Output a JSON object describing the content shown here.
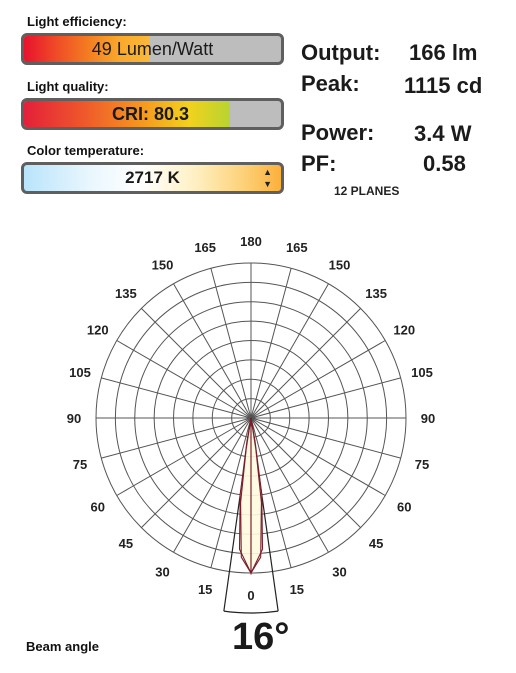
{
  "efficiency": {
    "label": "Light efficiency:",
    "value_text": "49 Lumen/Watt",
    "fill_fraction": 0.49
  },
  "quality": {
    "label": "Light quality:",
    "value_text": "CRI:  80.3",
    "fill_fraction": 0.803
  },
  "color_temp": {
    "label": "Color temperature:",
    "value_text": "2717 K",
    "up_icon": "triangle-up-icon",
    "down_icon": "triangle-down-icon"
  },
  "metrics": {
    "output_label": "Output:",
    "output_value": "166 lm",
    "peak_label": "Peak:",
    "peak_value": "1115 cd",
    "power_label": "Power:",
    "power_value": "3.4 W",
    "pf_label": "PF:",
    "pf_value": "0.58"
  },
  "planes_text": "12 PLANES",
  "beam": {
    "label": "Beam angle",
    "value": "16°"
  },
  "colors": {
    "accent_curve": "#7a1e2c",
    "beam_fill": "#fffbe0"
  },
  "chart_data": {
    "type": "polar",
    "angle_labels": [
      "180",
      "165",
      "165",
      "150",
      "150",
      "135",
      "135",
      "120",
      "120",
      "105",
      "105",
      "90",
      "90",
      "75",
      "75",
      "60",
      "60",
      "45",
      "45",
      "30",
      "30",
      "15",
      "15",
      "0"
    ],
    "rings": 8,
    "beam_angle_deg": 16,
    "series": [
      {
        "values": [
          [
            0,
            1.0
          ],
          [
            5,
            0.85
          ],
          [
            8,
            0.5
          ],
          [
            10,
            0.15
          ],
          [
            12,
            0.0
          ]
        ]
      },
      {
        "values": [
          [
            0,
            1.0
          ],
          [
            4,
            0.9
          ],
          [
            7,
            0.55
          ],
          [
            9,
            0.2
          ],
          [
            11,
            0.0
          ]
        ]
      }
    ]
  }
}
